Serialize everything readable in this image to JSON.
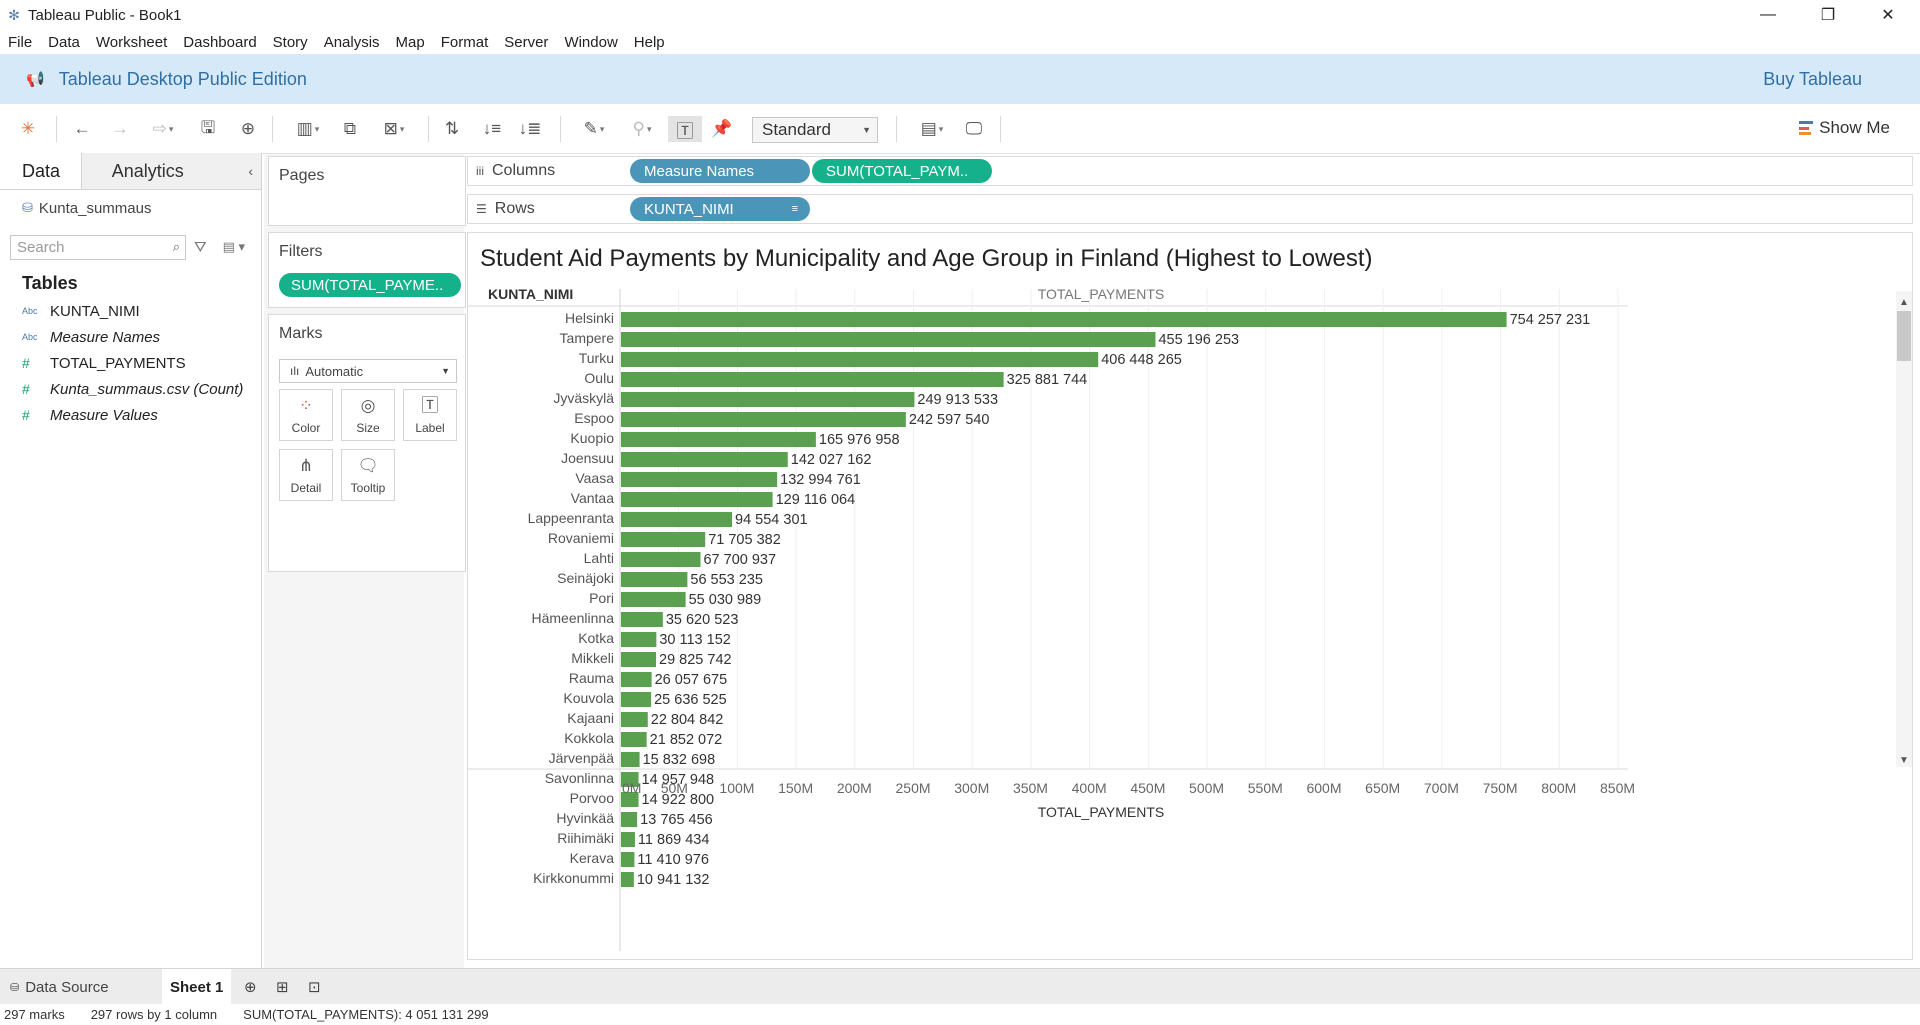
{
  "window": {
    "title": "Tableau Public - Book1",
    "controls": {
      "minimize": "—",
      "restore": "❐",
      "close": "✕"
    }
  },
  "menu": [
    "File",
    "Data",
    "Worksheet",
    "Dashboard",
    "Story",
    "Analysis",
    "Map",
    "Format",
    "Server",
    "Window",
    "Help"
  ],
  "banner": {
    "edition": "Tableau Desktop Public Edition",
    "buy": "Buy Tableau"
  },
  "toolbar": {
    "fit": "Standard",
    "show_me": "Show Me"
  },
  "data_pane": {
    "tab_data": "Data",
    "tab_analytics": "Analytics",
    "datasource": "Kunta_summaus",
    "search_placeholder": "Search",
    "tables_heading": "Tables",
    "fields": [
      {
        "type": "Abc",
        "name": "KUNTA_NIMI",
        "italic": false
      },
      {
        "type": "Abc",
        "name": "Measure Names",
        "italic": true
      },
      {
        "type": "#",
        "name": "TOTAL_PAYMENTS",
        "italic": false
      },
      {
        "type": "#",
        "name": "Kunta_summaus.csv (Count)",
        "italic": true
      },
      {
        "type": "#",
        "name": "Measure Values",
        "italic": true
      }
    ]
  },
  "cards": {
    "pages": "Pages",
    "filters": "Filters",
    "filter_pill": "SUM(TOTAL_PAYME..",
    "marks": "Marks",
    "marks_type": "Automatic",
    "marks_buttons": {
      "color": "Color",
      "size": "Size",
      "label": "Label",
      "detail": "Detail",
      "tooltip": "Tooltip"
    }
  },
  "shelves": {
    "columns_label": "Columns",
    "rows_label": "Rows",
    "columns_pills": [
      "Measure Names",
      "SUM(TOTAL_PAYM.."
    ],
    "rows_pills": [
      "KUNTA_NIMI"
    ]
  },
  "sheet_tabs": {
    "data_source": "Data Source",
    "sheet": "Sheet 1"
  },
  "status": {
    "marks": "297 marks",
    "rows": "297 rows by 1 column",
    "sum": "SUM(TOTAL_PAYMENTS): 4 051 131 299"
  },
  "colors": {
    "bar": "#59a14f",
    "dim_pill": "#4b96b8",
    "measure_pill": "#14b18b",
    "banner": "#d6e9f8"
  },
  "chart_data": {
    "type": "bar",
    "orientation": "horizontal",
    "title": "Student Aid Payments by Municipality and Age Group in Finland (Highest to Lowest)",
    "row_header": "KUNTA_NIMI",
    "column_header": "TOTAL_PAYMENTS",
    "xlabel": "TOTAL_PAYMENTS",
    "xlim": [
      0,
      850000000
    ],
    "x_ticks": [
      "0M",
      "50M",
      "100M",
      "150M",
      "200M",
      "250M",
      "300M",
      "350M",
      "400M",
      "450M",
      "500M",
      "550M",
      "600M",
      "650M",
      "700M",
      "750M",
      "800M",
      "850M"
    ],
    "grid": "vertical",
    "categories": [
      "Helsinki",
      "Tampere",
      "Turku",
      "Oulu",
      "Jyväskylä",
      "Espoo",
      "Kuopio",
      "Joensuu",
      "Vaasa",
      "Vantaa",
      "Lappeenranta",
      "Rovaniemi",
      "Lahti",
      "Seinäjoki",
      "Pori",
      "Hämeenlinna",
      "Kotka",
      "Mikkeli",
      "Rauma",
      "Kouvola",
      "Kajaani",
      "Kokkola",
      "Järvenpää",
      "Savonlinna",
      "Porvoo",
      "Hyvinkää",
      "Riihimäki",
      "Kerava",
      "Kirkkonummi"
    ],
    "values": [
      754257231,
      455196253,
      406448265,
      325881744,
      249913533,
      242597540,
      165976958,
      142027162,
      132994761,
      129116064,
      94554301,
      71705382,
      67700937,
      56553235,
      55030989,
      35620523,
      30113152,
      29825742,
      26057675,
      25636525,
      22804842,
      21852072,
      15832698,
      14957948,
      14922800,
      13765456,
      11869434,
      11410976,
      10941132
    ],
    "labels": [
      "754 257 231",
      "455 196 253",
      "406 448 265",
      "325 881 744",
      "249 913 533",
      "242 597 540",
      "165 976 958",
      "142 027 162",
      "132 994 761",
      "129 116 064",
      "94 554 301",
      "71 705 382",
      "67 700 937",
      "56 553 235",
      "55 030 989",
      "35 620 523",
      "30 113 152",
      "29 825 742",
      "26 057 675",
      "25 636 525",
      "22 804 842",
      "21 852 072",
      "15 832 698",
      "14 957 948",
      "14 922 800",
      "13 765 456",
      "11 869 434",
      "11 410 976",
      "10 941 132"
    ]
  }
}
